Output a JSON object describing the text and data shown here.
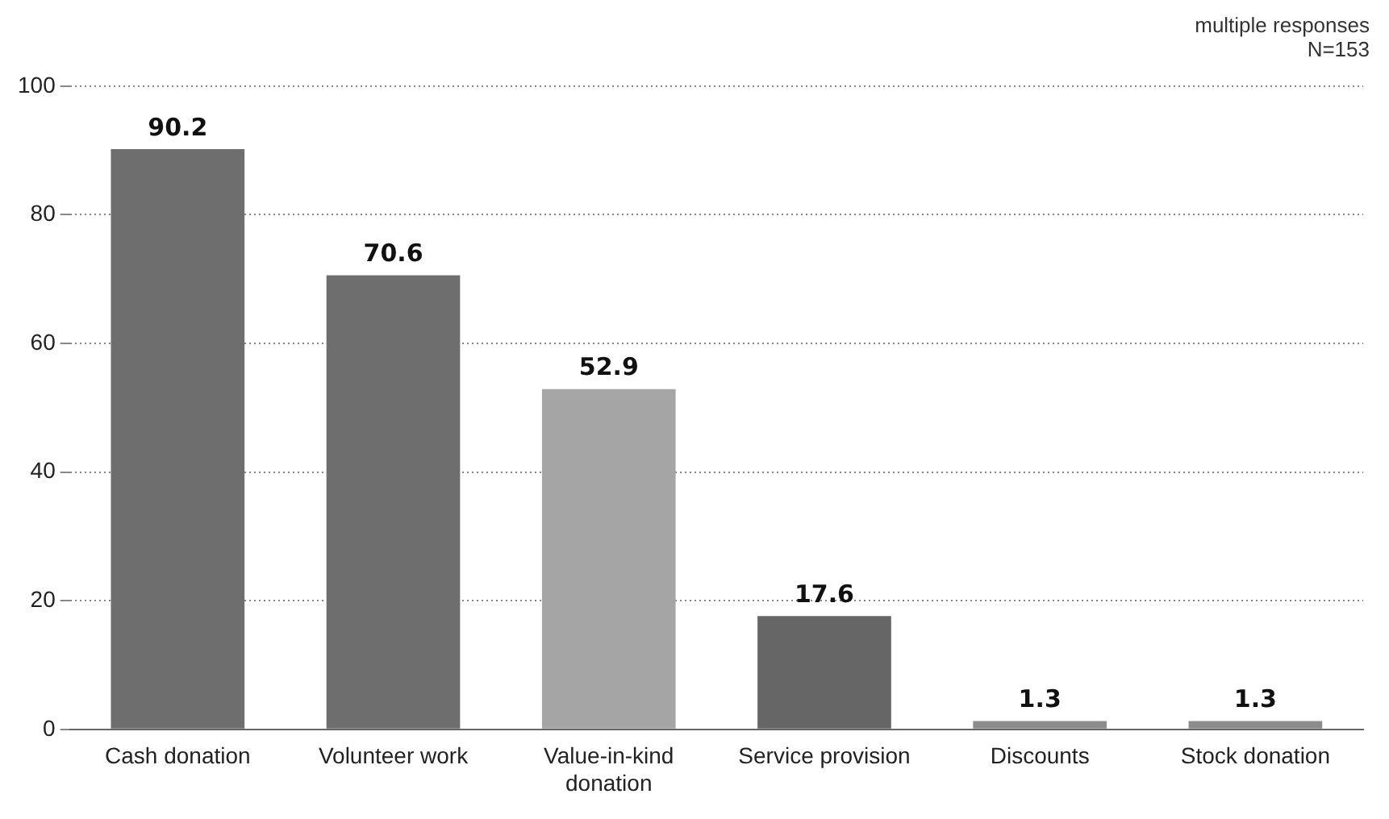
{
  "chart_data": {
    "type": "bar",
    "categories": [
      "Cash donation",
      "Volunteer work",
      "Value-in-kind donation",
      "Service provision",
      "Discounts",
      "Stock donation"
    ],
    "values": [
      90.2,
      70.6,
      52.9,
      17.6,
      1.3,
      1.3
    ],
    "colors": [
      "#6e6e6e",
      "#6e6e6e",
      "#a5a5a5",
      "#666666",
      "#8c8c8c",
      "#8c8c8c"
    ],
    "ylim": [
      0,
      100
    ],
    "yticks": [
      0,
      20,
      40,
      60,
      80,
      100
    ],
    "grid": "y",
    "data_labels": true,
    "legend": false,
    "annotations": [
      "multiple responses",
      "N=153"
    ]
  }
}
